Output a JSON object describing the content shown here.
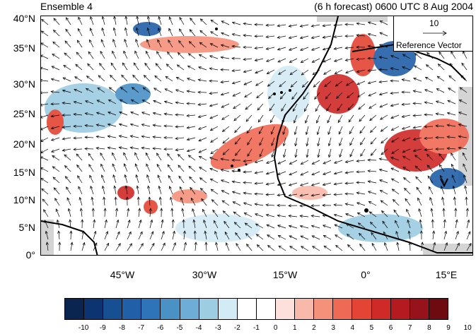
{
  "header": {
    "left_title": "Ensemble 4",
    "right_title": "(6 h forecast) 0600 UTC 8 Aug 2004"
  },
  "map": {
    "lat_labels": [
      "40°N",
      "35°N",
      "30°N",
      "25°N",
      "20°N",
      "15°N",
      "10°N",
      "5°N",
      "0°"
    ],
    "lon_labels": [
      "45°W",
      "30°W",
      "15°W",
      "0°",
      "15°E"
    ],
    "reference_vector": {
      "value": "10",
      "label": "Reference Vector"
    },
    "colors": {
      "land_mask": "#d4d4d4",
      "coastline": "#000000",
      "vector": "#000000"
    }
  },
  "colorbar": {
    "labels": [
      "-10",
      "-9",
      "-8",
      "-7",
      "-6",
      "-5",
      "-4",
      "-3",
      "-2",
      "-1",
      "0",
      "1",
      "2",
      "3",
      "4",
      "5",
      "6",
      "7",
      "8",
      "9",
      "10"
    ],
    "colors": [
      "#0a2550",
      "#0c3470",
      "#174f93",
      "#215fa8",
      "#2e74b8",
      "#4a91c6",
      "#6eaed6",
      "#9dcde3",
      "#d3ebf5",
      "#ffffff",
      "#ffffff",
      "#fde0dc",
      "#f8b9aa",
      "#f4917b",
      "#ef6a55",
      "#e34434",
      "#cf2a27",
      "#b51a20",
      "#96131b",
      "#6e0b10"
    ]
  }
}
